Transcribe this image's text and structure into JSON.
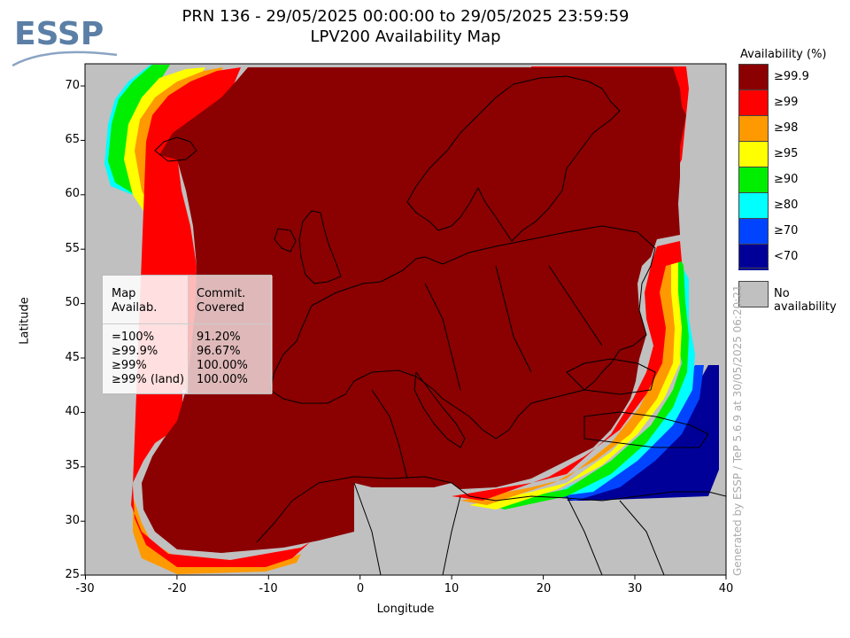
{
  "header": {
    "title_line1": "PRN 136 - 29/05/2025 00:00:00 to 29/05/2025 23:59:59",
    "title_line2": "LPV200 Availability Map",
    "logo_text": "ESSP"
  },
  "axes": {
    "xlabel": "Longitude",
    "ylabel": "Latitude",
    "xticks": [
      "-30",
      "-20",
      "-10",
      "0",
      "10",
      "20",
      "30",
      "40"
    ],
    "yticks": [
      "70",
      "65",
      "60",
      "55",
      "50",
      "45",
      "40",
      "35",
      "30",
      "25"
    ],
    "xlim": [
      -30,
      40
    ],
    "ylim": [
      25,
      72
    ]
  },
  "legend": {
    "title": "Availability (%)",
    "items": [
      {
        "label": "≥99.9",
        "color": "#8b0000"
      },
      {
        "label": "≥99",
        "color": "#ff0000"
      },
      {
        "label": "≥98",
        "color": "#ff9900"
      },
      {
        "label": "≥95",
        "color": "#ffff00"
      },
      {
        "label": "≥90",
        "color": "#00ee00"
      },
      {
        "label": "≥80",
        "color": "#00ffff"
      },
      {
        "label": "≥70",
        "color": "#0044ff"
      },
      {
        "label": "<70",
        "color": "#000099"
      }
    ],
    "no_availability": {
      "label": "No availability",
      "color": "#c0c0c0"
    }
  },
  "stats": {
    "col1_header": [
      "Map",
      "Availab."
    ],
    "col2_header": [
      "Commit.",
      "Covered"
    ],
    "rows": [
      {
        "level": "=100%",
        "covered": "91.20%"
      },
      {
        "level": "≥99.9%",
        "covered": "96.67%"
      },
      {
        "level": "≥99%",
        "covered": "100.00%"
      },
      {
        "level": "≥99% (land)",
        "covered": "100.00%"
      }
    ]
  },
  "footer": {
    "generated": "Generated by ESSP / TeP 5.6.9 at 30/05/2025 06:20:21"
  },
  "colors": {
    "no_availability": "#c0c0c0",
    "top": "#8b0000",
    "coastline": "#000000"
  }
}
